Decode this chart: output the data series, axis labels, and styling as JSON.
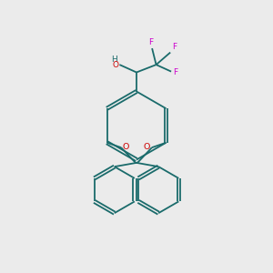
{
  "background_color": "#ebebeb",
  "bond_color": "#1a6b6b",
  "oxygen_color": "#cc0000",
  "fluorine_color": "#cc00cc",
  "line_width": 1.3,
  "fig_size": [
    3.0,
    3.0
  ],
  "dpi": 100,
  "xlim": [
    0,
    10
  ],
  "ylim": [
    0,
    10
  ]
}
